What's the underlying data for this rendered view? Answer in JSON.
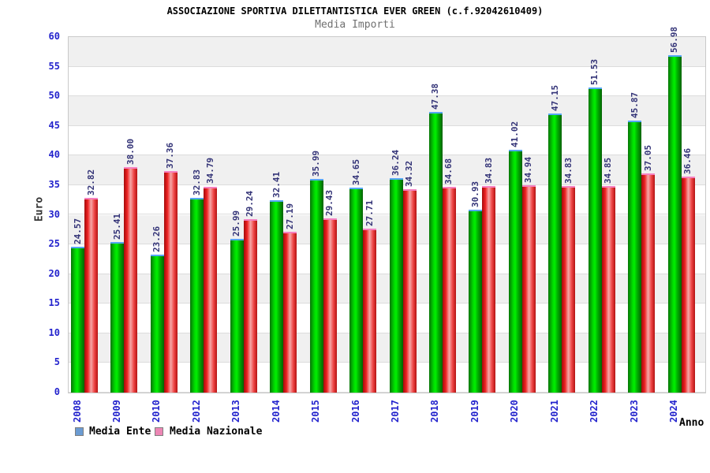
{
  "chart_data": {
    "type": "bar",
    "title": "ASSOCIAZIONE SPORTIVA DILETTANTISTICA EVER GREEN (c.f.92042610409)",
    "subtitle": "Media Importi",
    "ylabel": "Euro",
    "xlabel": "Anno",
    "ylim": [
      0,
      60
    ],
    "ytick_step": 5,
    "grid": "horizontal-bands-every-5",
    "band_colors": [
      "#f0f0f0",
      "#ffffff"
    ],
    "legend_position": "bottom-left",
    "axis_tick_color": "#2323cd",
    "value_label_color": "#333377",
    "categories": [
      "2008",
      "2009",
      "2010",
      "2012",
      "2013",
      "2014",
      "2015",
      "2016",
      "2017",
      "2018",
      "2019",
      "2020",
      "2021",
      "2022",
      "2023",
      "2024"
    ],
    "series": [
      {
        "name": "Media Ente",
        "legend_color": "#6b9bd2",
        "bar_colors": [
          "#077407",
          "#00f000",
          "#046104"
        ],
        "cap_color": "#55a6f5",
        "values": [
          24.57,
          25.41,
          23.26,
          32.83,
          25.99,
          32.41,
          35.99,
          34.65,
          36.24,
          47.38,
          30.93,
          41.02,
          47.15,
          51.53,
          45.87,
          56.98
        ]
      },
      {
        "name": "Media Nazionale",
        "legend_color": "#ec86b4",
        "bar_colors": [
          "#a30b0b",
          "#f5a8a8",
          "#b31212"
        ],
        "cap_color": "#f580c0",
        "values": [
          32.82,
          38.0,
          37.36,
          34.79,
          29.24,
          27.19,
          29.43,
          27.71,
          34.32,
          34.68,
          34.83,
          34.94,
          34.83,
          34.85,
          37.05,
          36.46
        ]
      }
    ]
  }
}
